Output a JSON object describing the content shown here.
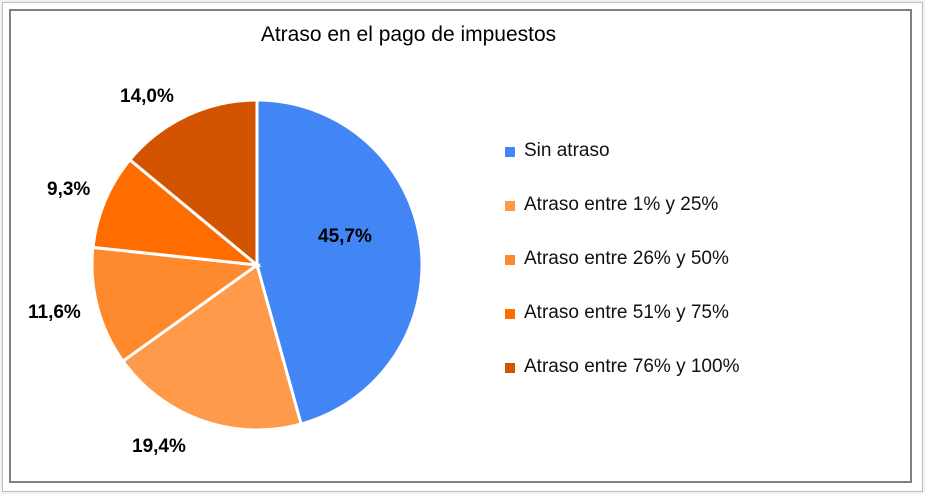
{
  "chart_data": {
    "type": "pie",
    "title": "Atraso en el pago de impuestos",
    "categories": [
      "Sin atraso",
      "Atraso entre 1% y 25%",
      "Atraso entre 26% y 50%",
      "Atraso entre 51% y 75%",
      "Atraso entre 76% y 100%"
    ],
    "values": [
      45.7,
      19.4,
      11.6,
      9.3,
      14.0
    ],
    "data_labels": [
      "45,7%",
      "19,4%",
      "11,6%",
      "9,3%",
      "14,0%"
    ],
    "colors": [
      "#4285f4",
      "#ff9a4a",
      "#ff8a2e",
      "#ff6d01",
      "#d35400"
    ],
    "legend_position": "right"
  },
  "legend": {
    "items": [
      {
        "label": "Sin atraso",
        "color": "#4285f4"
      },
      {
        "label": "Atraso entre 1% y 25%",
        "color": "#ff9a4a"
      },
      {
        "label": "Atraso entre 26% y 50%",
        "color": "#ff8a2e"
      },
      {
        "label": "Atraso entre 51% y 75%",
        "color": "#ff6d01"
      },
      {
        "label": "Atraso entre 76% y 100%",
        "color": "#d35400"
      }
    ]
  }
}
